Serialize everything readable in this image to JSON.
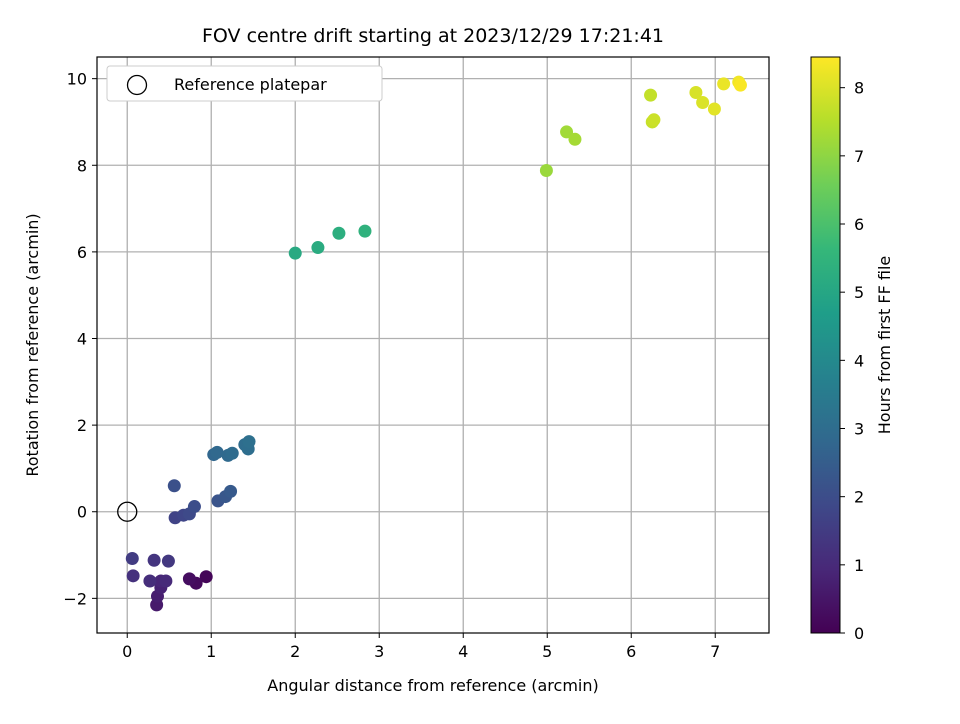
{
  "chart_data": {
    "type": "scatter",
    "title": "FOV centre drift starting at 2023/12/29 17:21:41",
    "xlabel": "Angular distance from reference (arcmin)",
    "ylabel": "Rotation from reference (arcmin)",
    "xlim": [
      -0.36,
      7.64
    ],
    "ylim": [
      -2.8,
      10.5
    ],
    "xticks": [
      0,
      1,
      2,
      3,
      4,
      5,
      6,
      7
    ],
    "yticks": [
      -2,
      0,
      2,
      4,
      6,
      8,
      10
    ],
    "xtick_labels": [
      "0",
      "1",
      "2",
      "3",
      "4",
      "5",
      "6",
      "7"
    ],
    "ytick_labels": [
      "−2",
      "0",
      "2",
      "4",
      "6",
      "8",
      "10"
    ],
    "grid": true,
    "legend": {
      "position": "top-left",
      "entries": [
        {
          "label": "Reference platepar",
          "marker": "open-circle",
          "x": 0,
          "y": 0
        }
      ]
    },
    "colorbar": {
      "label": "Hours from first FF file",
      "colormap": "viridis",
      "range": [
        0,
        8.45
      ],
      "ticks": [
        0,
        1,
        2,
        3,
        4,
        5,
        6,
        7,
        8
      ],
      "tick_labels": [
        "0",
        "1",
        "2",
        "3",
        "4",
        "5",
        "6",
        "7",
        "8"
      ]
    },
    "points": [
      {
        "x": 0.94,
        "y": -1.5,
        "c": 0.1
      },
      {
        "x": 0.82,
        "y": -1.65,
        "c": 0.2
      },
      {
        "x": 0.74,
        "y": -1.55,
        "c": 0.3
      },
      {
        "x": 0.35,
        "y": -2.15,
        "c": 0.6
      },
      {
        "x": 0.36,
        "y": -1.95,
        "c": 0.7
      },
      {
        "x": 0.4,
        "y": -1.75,
        "c": 0.8
      },
      {
        "x": 0.4,
        "y": -1.6,
        "c": 0.9
      },
      {
        "x": 0.46,
        "y": -1.6,
        "c": 1.0
      },
      {
        "x": 0.27,
        "y": -1.6,
        "c": 1.1
      },
      {
        "x": 0.07,
        "y": -1.48,
        "c": 1.2
      },
      {
        "x": 0.32,
        "y": -1.12,
        "c": 1.3
      },
      {
        "x": 0.49,
        "y": -1.14,
        "c": 1.4
      },
      {
        "x": 0.06,
        "y": -1.08,
        "c": 1.5
      },
      {
        "x": 0.57,
        "y": -0.14,
        "c": 1.7
      },
      {
        "x": 0.67,
        "y": -0.08,
        "c": 1.8
      },
      {
        "x": 0.74,
        "y": -0.05,
        "c": 1.9
      },
      {
        "x": 0.8,
        "y": 0.12,
        "c": 2.0
      },
      {
        "x": 0.56,
        "y": 0.6,
        "c": 2.1
      },
      {
        "x": 1.08,
        "y": 0.25,
        "c": 2.2
      },
      {
        "x": 1.17,
        "y": 0.35,
        "c": 2.3
      },
      {
        "x": 1.23,
        "y": 0.47,
        "c": 2.4
      },
      {
        "x": 1.03,
        "y": 1.32,
        "c": 2.8
      },
      {
        "x": 1.07,
        "y": 1.37,
        "c": 2.85
      },
      {
        "x": 1.2,
        "y": 1.3,
        "c": 2.9
      },
      {
        "x": 1.25,
        "y": 1.35,
        "c": 2.95
      },
      {
        "x": 1.4,
        "y": 1.55,
        "c": 3.0
      },
      {
        "x": 1.44,
        "y": 1.45,
        "c": 3.05
      },
      {
        "x": 1.45,
        "y": 1.62,
        "c": 3.1
      },
      {
        "x": 2.0,
        "y": 5.97,
        "c": 5.1
      },
      {
        "x": 2.27,
        "y": 6.1,
        "c": 5.2
      },
      {
        "x": 2.52,
        "y": 6.43,
        "c": 5.3
      },
      {
        "x": 2.83,
        "y": 6.48,
        "c": 5.4
      },
      {
        "x": 4.99,
        "y": 7.88,
        "c": 7.15
      },
      {
        "x": 5.23,
        "y": 8.77,
        "c": 7.25
      },
      {
        "x": 5.33,
        "y": 8.6,
        "c": 7.3
      },
      {
        "x": 6.23,
        "y": 9.62,
        "c": 7.7
      },
      {
        "x": 6.25,
        "y": 9.0,
        "c": 7.75
      },
      {
        "x": 6.27,
        "y": 9.05,
        "c": 7.8
      },
      {
        "x": 6.77,
        "y": 9.68,
        "c": 7.95
      },
      {
        "x": 6.85,
        "y": 9.45,
        "c": 8.0
      },
      {
        "x": 6.99,
        "y": 9.3,
        "c": 8.1
      },
      {
        "x": 7.1,
        "y": 9.88,
        "c": 8.2
      },
      {
        "x": 7.28,
        "y": 9.92,
        "c": 8.3
      },
      {
        "x": 7.3,
        "y": 9.85,
        "c": 8.4
      }
    ]
  }
}
